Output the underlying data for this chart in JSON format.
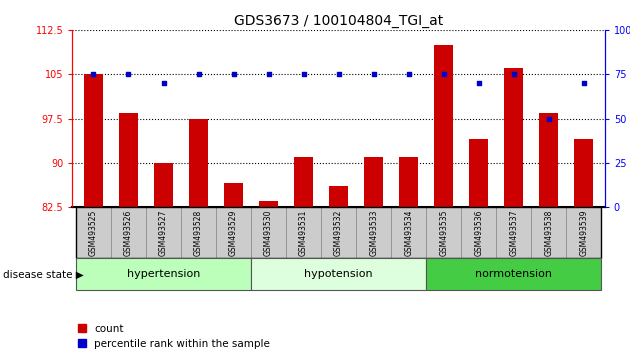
{
  "title": "GDS3673 / 100104804_TGI_at",
  "samples": [
    "GSM493525",
    "GSM493526",
    "GSM493527",
    "GSM493528",
    "GSM493529",
    "GSM493530",
    "GSM493531",
    "GSM493532",
    "GSM493533",
    "GSM493534",
    "GSM493535",
    "GSM493536",
    "GSM493537",
    "GSM493538",
    "GSM493539"
  ],
  "counts": [
    105.0,
    98.5,
    90.0,
    97.5,
    86.5,
    83.5,
    91.0,
    86.0,
    91.0,
    91.0,
    110.0,
    94.0,
    106.0,
    98.5,
    94.0
  ],
  "percentiles": [
    75,
    75,
    70,
    75,
    75,
    75,
    75,
    75,
    75,
    75,
    75,
    70,
    75,
    50,
    70
  ],
  "ymin": 82.5,
  "ymax": 112.5,
  "yticks_left": [
    82.5,
    90,
    97.5,
    105,
    112.5
  ],
  "yticks_right": [
    0,
    25,
    50,
    75,
    100
  ],
  "bar_color": "#cc0000",
  "dot_color": "#0000cc",
  "groups": [
    {
      "label": "hypertension",
      "start": 0,
      "end": 5,
      "color": "#bbffbb"
    },
    {
      "label": "hypotension",
      "start": 5,
      "end": 10,
      "color": "#ddffdd"
    },
    {
      "label": "normotension",
      "start": 10,
      "end": 15,
      "color": "#44cc44"
    }
  ],
  "disease_state_label": "disease state",
  "legend_count_label": "count",
  "legend_pct_label": "percentile rank within the sample",
  "background_color": "#ffffff",
  "tick_label_bg": "#cccccc"
}
